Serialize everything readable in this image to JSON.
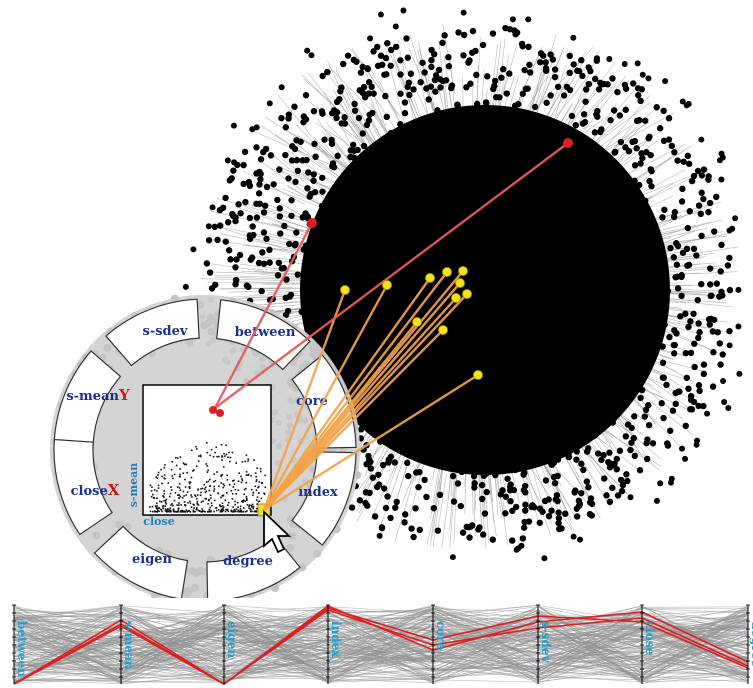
{
  "radial_menu": {
    "segments": [
      {
        "name": "s-sdev",
        "label": "s-sdev",
        "mark": ""
      },
      {
        "name": "between",
        "label": "between",
        "mark": ""
      },
      {
        "name": "s-mean",
        "label": "s-mean",
        "mark": "Y"
      },
      {
        "name": "core",
        "label": "core",
        "mark": ""
      },
      {
        "name": "close",
        "label": "close",
        "mark": "X"
      },
      {
        "name": "index",
        "label": "index",
        "mark": ""
      },
      {
        "name": "eigen",
        "label": "eigen",
        "mark": ""
      },
      {
        "name": "degree",
        "label": "degree",
        "mark": ""
      }
    ],
    "scatter": {
      "x_label": "close",
      "y_label": "s-mean"
    }
  },
  "parallel_axes": [
    "between",
    "s-mean",
    "eigen",
    "index",
    "core",
    "s-sdev",
    "close",
    "degree"
  ],
  "colors": {
    "node": "#000000",
    "edge": "#9a9a9a",
    "highlight_red": "#dd1f1f",
    "highlight_yellow": "#f2e21a",
    "link_orange": "#f2a34a",
    "menu_fill": "#d2d2d2",
    "label_blue": "#1a2f8f",
    "axis_blue": "#1f9fd0"
  }
}
